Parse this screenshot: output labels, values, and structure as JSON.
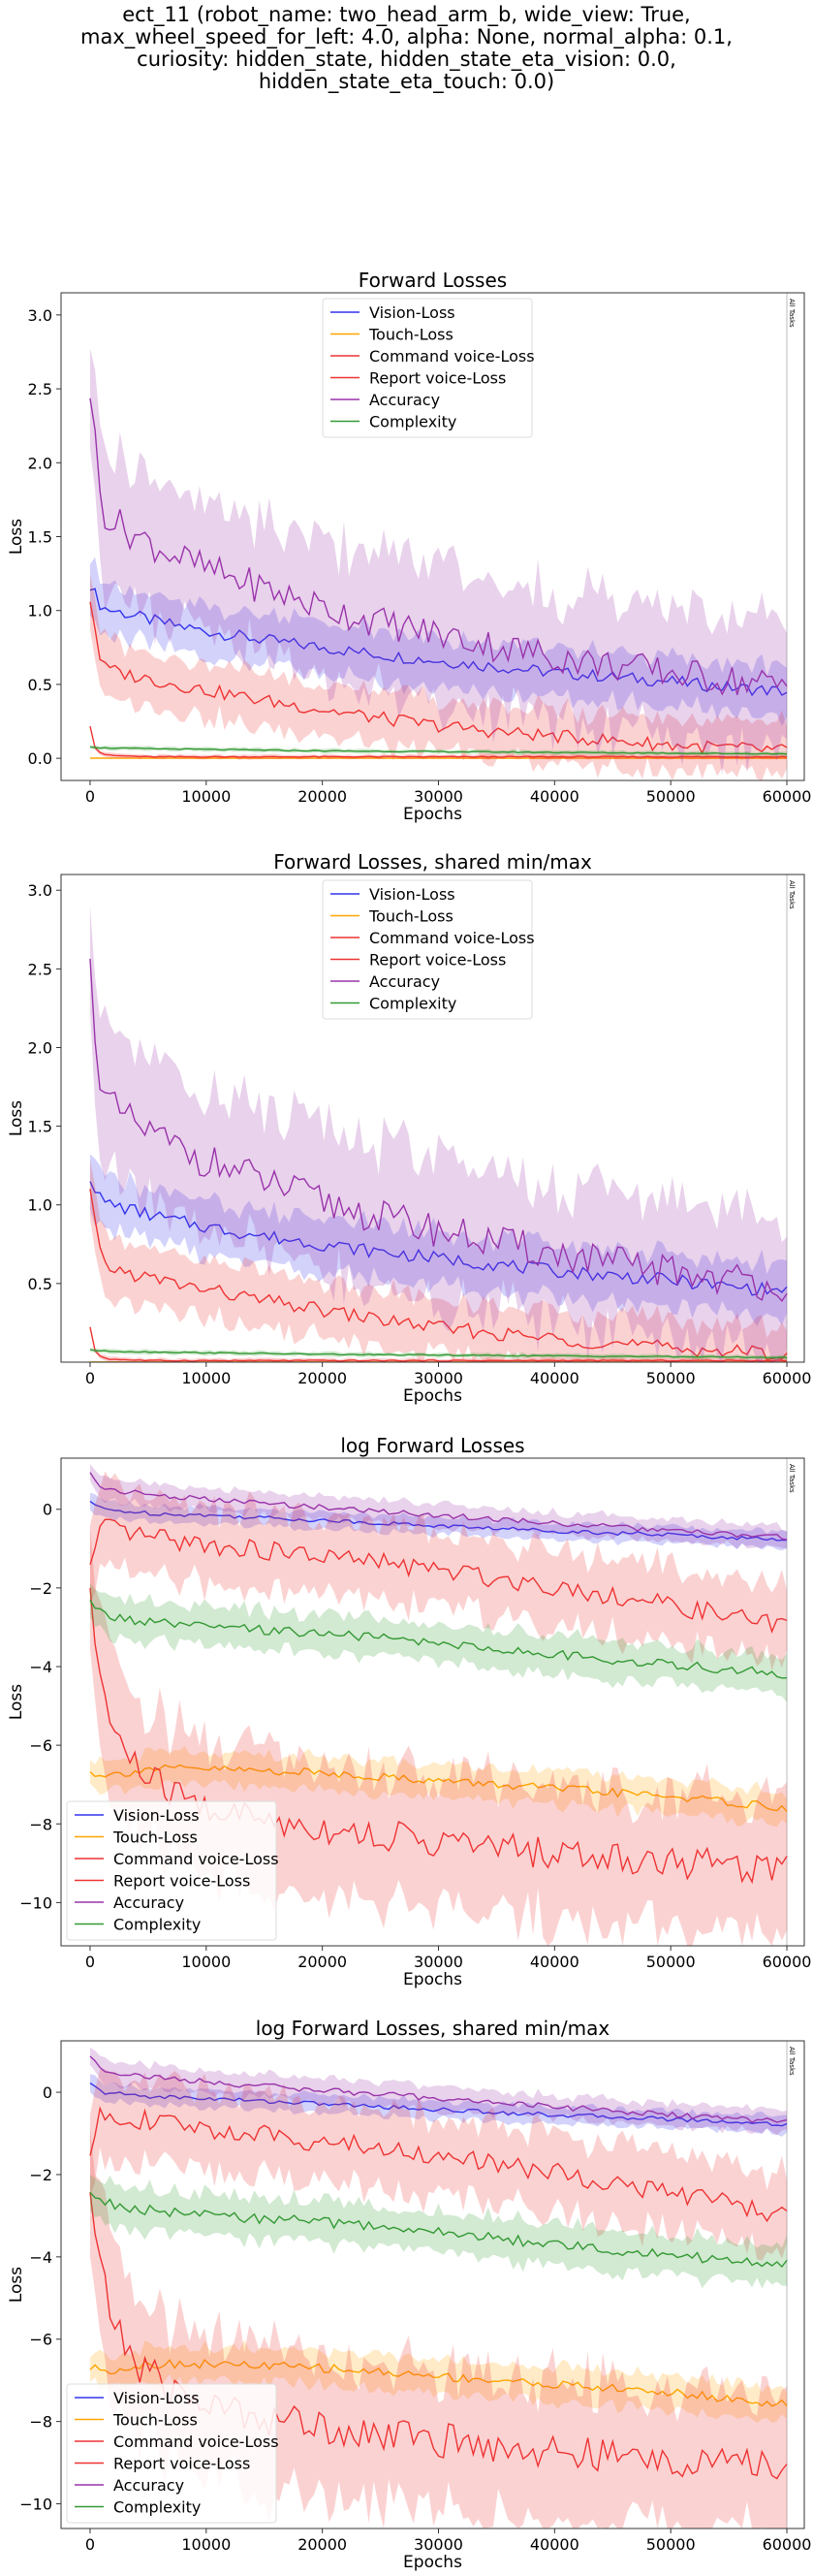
{
  "suptitle_lines": [
    "ect_11 (robot_name: two_head_arm_b, wide_view: True,",
    "max_wheel_speed_for_left: 4.0, alpha: None, normal_alpha: 0.1,",
    "curiosity: hidden_state, hidden_state_eta_vision: 0.0,",
    "hidden_state_eta_touch: 0.0)"
  ],
  "colors": {
    "vision": "#3333ee",
    "touch": "#ffa500",
    "command": "#ee3333",
    "report": "#ee3333",
    "accuracy": "#9933aa",
    "complexity": "#339933"
  },
  "chart_data": [
    {
      "type": "line",
      "title": "Forward Losses",
      "xlabel": "Epochs",
      "ylabel": "Loss",
      "xlim": [
        -2500,
        61500
      ],
      "ylim": [
        -0.15,
        3.15
      ],
      "xticks": [
        "0",
        "10000",
        "20000",
        "30000",
        "40000",
        "50000",
        "60000"
      ],
      "yticks": [
        "0.0",
        "0.5",
        "1.0",
        "1.5",
        "2.0",
        "2.5",
        "3.0"
      ],
      "ytick_values": [
        0,
        0.5,
        1,
        1.5,
        2,
        2.5,
        3
      ],
      "legend": "top-center",
      "vline_label": "All Tasks",
      "series": [
        {
          "name": "Vision-Loss",
          "key": "vision",
          "x": [
            0,
            1000,
            3000,
            6000,
            10000,
            15000,
            20000,
            25000,
            30000,
            35000,
            40000,
            45000,
            50000,
            55000,
            60000
          ],
          "y": [
            1.18,
            1.02,
            0.98,
            0.92,
            0.86,
            0.8,
            0.75,
            0.7,
            0.66,
            0.62,
            0.58,
            0.55,
            0.52,
            0.48,
            0.45
          ],
          "band": 0.12
        },
        {
          "name": "Touch-Loss",
          "key": "touch",
          "x": [
            0,
            1000,
            5000,
            20000,
            40000,
            60000
          ],
          "y": [
            0.001,
            0.001,
            0.001,
            0.001,
            0.001,
            0.001
          ],
          "band": 0.0
        },
        {
          "name": "Command voice-Loss",
          "key": "command",
          "x": [
            0,
            500,
            1500,
            5000,
            10000,
            15000,
            20000,
            25000,
            30000,
            35000,
            40000,
            45000,
            50000,
            55000,
            60000
          ],
          "y": [
            0.22,
            0.05,
            0.02,
            0.01,
            0.01,
            0.01,
            0.01,
            0.01,
            0.01,
            0.01,
            0.01,
            0.01,
            0.01,
            0.01,
            0.01
          ],
          "band": 0.01
        },
        {
          "name": "Report voice-Loss",
          "key": "report",
          "x": [
            0,
            1000,
            3000,
            6000,
            10000,
            15000,
            20000,
            25000,
            30000,
            35000,
            40000,
            45000,
            50000,
            55000,
            60000
          ],
          "y": [
            1.08,
            0.62,
            0.57,
            0.52,
            0.46,
            0.39,
            0.33,
            0.27,
            0.22,
            0.18,
            0.15,
            0.12,
            0.09,
            0.07,
            0.05
          ],
          "band": 0.13
        },
        {
          "name": "Accuracy",
          "key": "accuracy",
          "x": [
            0,
            1000,
            3000,
            6000,
            10000,
            15000,
            20000,
            25000,
            30000,
            35000,
            40000,
            45000,
            50000,
            55000,
            60000
          ],
          "y": [
            2.5,
            1.68,
            1.55,
            1.42,
            1.28,
            1.15,
            1.02,
            0.92,
            0.84,
            0.76,
            0.69,
            0.63,
            0.58,
            0.53,
            0.49
          ],
          "band": 0.32
        },
        {
          "name": "Complexity",
          "key": "complexity",
          "x": [
            0,
            1000,
            5000,
            10000,
            20000,
            30000,
            40000,
            50000,
            60000
          ],
          "y": [
            0.08,
            0.07,
            0.065,
            0.06,
            0.05,
            0.045,
            0.04,
            0.035,
            0.03
          ],
          "band": 0.01
        }
      ]
    },
    {
      "type": "line",
      "title": "Forward Losses, shared min/max",
      "xlabel": "Epochs",
      "ylabel": "Loss",
      "xlim": [
        -2500,
        61500
      ],
      "ylim": [
        0.0,
        3.1
      ],
      "xticks": [
        "0",
        "10000",
        "20000",
        "30000",
        "40000",
        "50000",
        "60000"
      ],
      "yticks": [
        "0.5",
        "1.0",
        "1.5",
        "2.0",
        "2.5",
        "3.0"
      ],
      "ytick_values": [
        0.5,
        1,
        1.5,
        2,
        2.5,
        3
      ],
      "legend": "top-center",
      "vline_label": "All Tasks",
      "series": [
        {
          "name": "Vision-Loss",
          "key": "vision",
          "x": [
            0,
            1000,
            3000,
            6000,
            10000,
            15000,
            20000,
            25000,
            30000,
            35000,
            40000,
            45000,
            50000,
            55000,
            60000
          ],
          "y": [
            1.18,
            1.02,
            0.98,
            0.92,
            0.86,
            0.8,
            0.75,
            0.7,
            0.66,
            0.62,
            0.58,
            0.55,
            0.52,
            0.48,
            0.45
          ],
          "band": 0.12
        },
        {
          "name": "Touch-Loss",
          "key": "touch",
          "x": [
            0,
            1000,
            5000,
            20000,
            40000,
            60000
          ],
          "y": [
            0.001,
            0.001,
            0.001,
            0.001,
            0.001,
            0.001
          ],
          "band": 0.0
        },
        {
          "name": "Command voice-Loss",
          "key": "command",
          "x": [
            0,
            500,
            1500,
            5000,
            10000,
            15000,
            20000,
            25000,
            30000,
            35000,
            40000,
            45000,
            50000,
            55000,
            60000
          ],
          "y": [
            0.22,
            0.05,
            0.02,
            0.01,
            0.01,
            0.01,
            0.01,
            0.01,
            0.01,
            0.01,
            0.01,
            0.01,
            0.01,
            0.01,
            0.01
          ],
          "band": 0.01
        },
        {
          "name": "Report voice-Loss",
          "key": "report",
          "x": [
            0,
            1000,
            3000,
            6000,
            10000,
            15000,
            20000,
            25000,
            30000,
            35000,
            40000,
            45000,
            50000,
            55000,
            60000
          ],
          "y": [
            1.08,
            0.62,
            0.57,
            0.52,
            0.46,
            0.39,
            0.33,
            0.27,
            0.22,
            0.18,
            0.15,
            0.12,
            0.09,
            0.07,
            0.05
          ],
          "band": 0.13
        },
        {
          "name": "Accuracy",
          "key": "accuracy",
          "x": [
            0,
            1000,
            3000,
            6000,
            10000,
            15000,
            20000,
            25000,
            30000,
            35000,
            40000,
            45000,
            50000,
            55000,
            60000
          ],
          "y": [
            2.5,
            1.68,
            1.55,
            1.42,
            1.28,
            1.15,
            1.02,
            0.92,
            0.84,
            0.76,
            0.69,
            0.63,
            0.58,
            0.53,
            0.49
          ],
          "band": 0.32
        },
        {
          "name": "Complexity",
          "key": "complexity",
          "x": [
            0,
            1000,
            5000,
            10000,
            20000,
            30000,
            40000,
            50000,
            60000
          ],
          "y": [
            0.08,
            0.07,
            0.065,
            0.06,
            0.05,
            0.045,
            0.04,
            0.035,
            0.03
          ],
          "band": 0.01
        }
      ]
    },
    {
      "type": "line",
      "title": "log Forward Losses",
      "xlabel": "Epochs",
      "ylabel": "Loss",
      "xlim": [
        -2500,
        61500
      ],
      "ylim": [
        -11.1,
        1.3
      ],
      "xticks": [
        "0",
        "10000",
        "20000",
        "30000",
        "40000",
        "50000",
        "60000"
      ],
      "yticks": [
        "0",
        "−2",
        "−4",
        "−6",
        "−8",
        "−10"
      ],
      "ytick_values": [
        0,
        -2,
        -4,
        -6,
        -8,
        -10
      ],
      "legend": "bottom-left",
      "vline_label": "All Tasks",
      "series": [
        {
          "name": "Vision-Loss",
          "key": "vision",
          "x": [
            0,
            1000,
            5000,
            10000,
            20000,
            30000,
            40000,
            50000,
            60000
          ],
          "y": [
            0.2,
            0.0,
            -0.1,
            -0.15,
            -0.28,
            -0.42,
            -0.55,
            -0.65,
            -0.78
          ],
          "band": 0.15
        },
        {
          "name": "Touch-Loss",
          "key": "touch",
          "x": [
            0,
            2000,
            5000,
            10000,
            20000,
            30000,
            40000,
            50000,
            60000
          ],
          "y": [
            -6.7,
            -6.75,
            -6.6,
            -6.6,
            -6.7,
            -6.9,
            -7.1,
            -7.3,
            -7.6
          ],
          "band": 0.3
        },
        {
          "name": "Command voice-Loss",
          "key": "command",
          "x": [
            0,
            1000,
            2000,
            4000,
            7000,
            10000,
            15000,
            20000,
            25000,
            30000,
            35000,
            40000,
            45000,
            50000,
            55000,
            60000
          ],
          "y": [
            -2.4,
            -4.5,
            -5.6,
            -6.6,
            -7.2,
            -7.6,
            -7.9,
            -8.1,
            -8.3,
            -8.45,
            -8.6,
            -8.75,
            -8.85,
            -8.95,
            -9.05,
            -9.1
          ],
          "band": 1.2
        },
        {
          "name": "Report voice-Loss",
          "key": "report",
          "x": [
            0,
            1000,
            3000,
            6000,
            10000,
            15000,
            20000,
            25000,
            30000,
            35000,
            40000,
            45000,
            50000,
            55000,
            60000
          ],
          "y": [
            -1.5,
            -0.45,
            -0.6,
            -0.75,
            -0.9,
            -1.05,
            -1.2,
            -1.35,
            -1.55,
            -1.75,
            -1.95,
            -2.2,
            -2.45,
            -2.7,
            -3.0
          ],
          "band": 0.7
        },
        {
          "name": "Accuracy",
          "key": "accuracy",
          "x": [
            0,
            1000,
            3000,
            6000,
            10000,
            20000,
            30000,
            40000,
            50000,
            60000
          ],
          "y": [
            0.9,
            0.55,
            0.45,
            0.35,
            0.25,
            0.05,
            -0.15,
            -0.35,
            -0.55,
            -0.72
          ],
          "band": 0.2
        },
        {
          "name": "Complexity",
          "key": "complexity",
          "x": [
            0,
            1000,
            3000,
            6000,
            10000,
            20000,
            30000,
            40000,
            50000,
            60000
          ],
          "y": [
            -2.4,
            -2.65,
            -2.8,
            -2.9,
            -3.0,
            -3.15,
            -3.4,
            -3.7,
            -3.95,
            -4.2
          ],
          "band": 0.35
        }
      ]
    },
    {
      "type": "line",
      "title": "log Forward Losses, shared min/max",
      "xlabel": "Epochs",
      "ylabel": "Loss",
      "xlim": [
        -2500,
        61500
      ],
      "ylim": [
        -10.6,
        1.25
      ],
      "xticks": [
        "0",
        "10000",
        "20000",
        "30000",
        "40000",
        "50000",
        "60000"
      ],
      "yticks": [
        "0",
        "−2",
        "−4",
        "−6",
        "−8",
        "−10"
      ],
      "ytick_values": [
        0,
        -2,
        -4,
        -6,
        -8,
        -10
      ],
      "legend": "bottom-left",
      "vline_label": "All Tasks",
      "series": [
        {
          "name": "Vision-Loss",
          "key": "vision",
          "x": [
            0,
            1000,
            5000,
            10000,
            20000,
            30000,
            40000,
            50000,
            60000
          ],
          "y": [
            0.2,
            0.0,
            -0.1,
            -0.15,
            -0.28,
            -0.42,
            -0.55,
            -0.65,
            -0.78
          ],
          "band": 0.15
        },
        {
          "name": "Touch-Loss",
          "key": "touch",
          "x": [
            0,
            2000,
            5000,
            10000,
            20000,
            30000,
            40000,
            50000,
            60000
          ],
          "y": [
            -6.7,
            -6.75,
            -6.6,
            -6.6,
            -6.7,
            -6.9,
            -7.1,
            -7.3,
            -7.6
          ],
          "band": 0.3
        },
        {
          "name": "Command voice-Loss",
          "key": "command",
          "x": [
            0,
            1000,
            2000,
            4000,
            7000,
            10000,
            15000,
            20000,
            25000,
            30000,
            35000,
            40000,
            45000,
            50000,
            55000,
            60000
          ],
          "y": [
            -2.4,
            -4.5,
            -5.6,
            -6.6,
            -7.2,
            -7.6,
            -7.9,
            -8.1,
            -8.3,
            -8.45,
            -8.6,
            -8.75,
            -8.85,
            -8.95,
            -9.05,
            -9.1
          ],
          "band": 1.2
        },
        {
          "name": "Report voice-Loss",
          "key": "report",
          "x": [
            0,
            1000,
            3000,
            6000,
            10000,
            15000,
            20000,
            25000,
            30000,
            35000,
            40000,
            45000,
            50000,
            55000,
            60000
          ],
          "y": [
            -1.5,
            -0.45,
            -0.6,
            -0.75,
            -0.9,
            -1.05,
            -1.2,
            -1.35,
            -1.55,
            -1.75,
            -1.95,
            -2.2,
            -2.45,
            -2.7,
            -3.0
          ],
          "band": 0.7
        },
        {
          "name": "Accuracy",
          "key": "accuracy",
          "x": [
            0,
            1000,
            3000,
            6000,
            10000,
            20000,
            30000,
            40000,
            50000,
            60000
          ],
          "y": [
            0.9,
            0.55,
            0.45,
            0.35,
            0.25,
            0.05,
            -0.15,
            -0.35,
            -0.55,
            -0.72
          ],
          "band": 0.2
        },
        {
          "name": "Complexity",
          "key": "complexity",
          "x": [
            0,
            1000,
            3000,
            6000,
            10000,
            20000,
            30000,
            40000,
            50000,
            60000
          ],
          "y": [
            -2.4,
            -2.65,
            -2.8,
            -2.9,
            -3.0,
            -3.15,
            -3.4,
            -3.7,
            -3.95,
            -4.2
          ],
          "band": 0.35
        }
      ]
    }
  ]
}
